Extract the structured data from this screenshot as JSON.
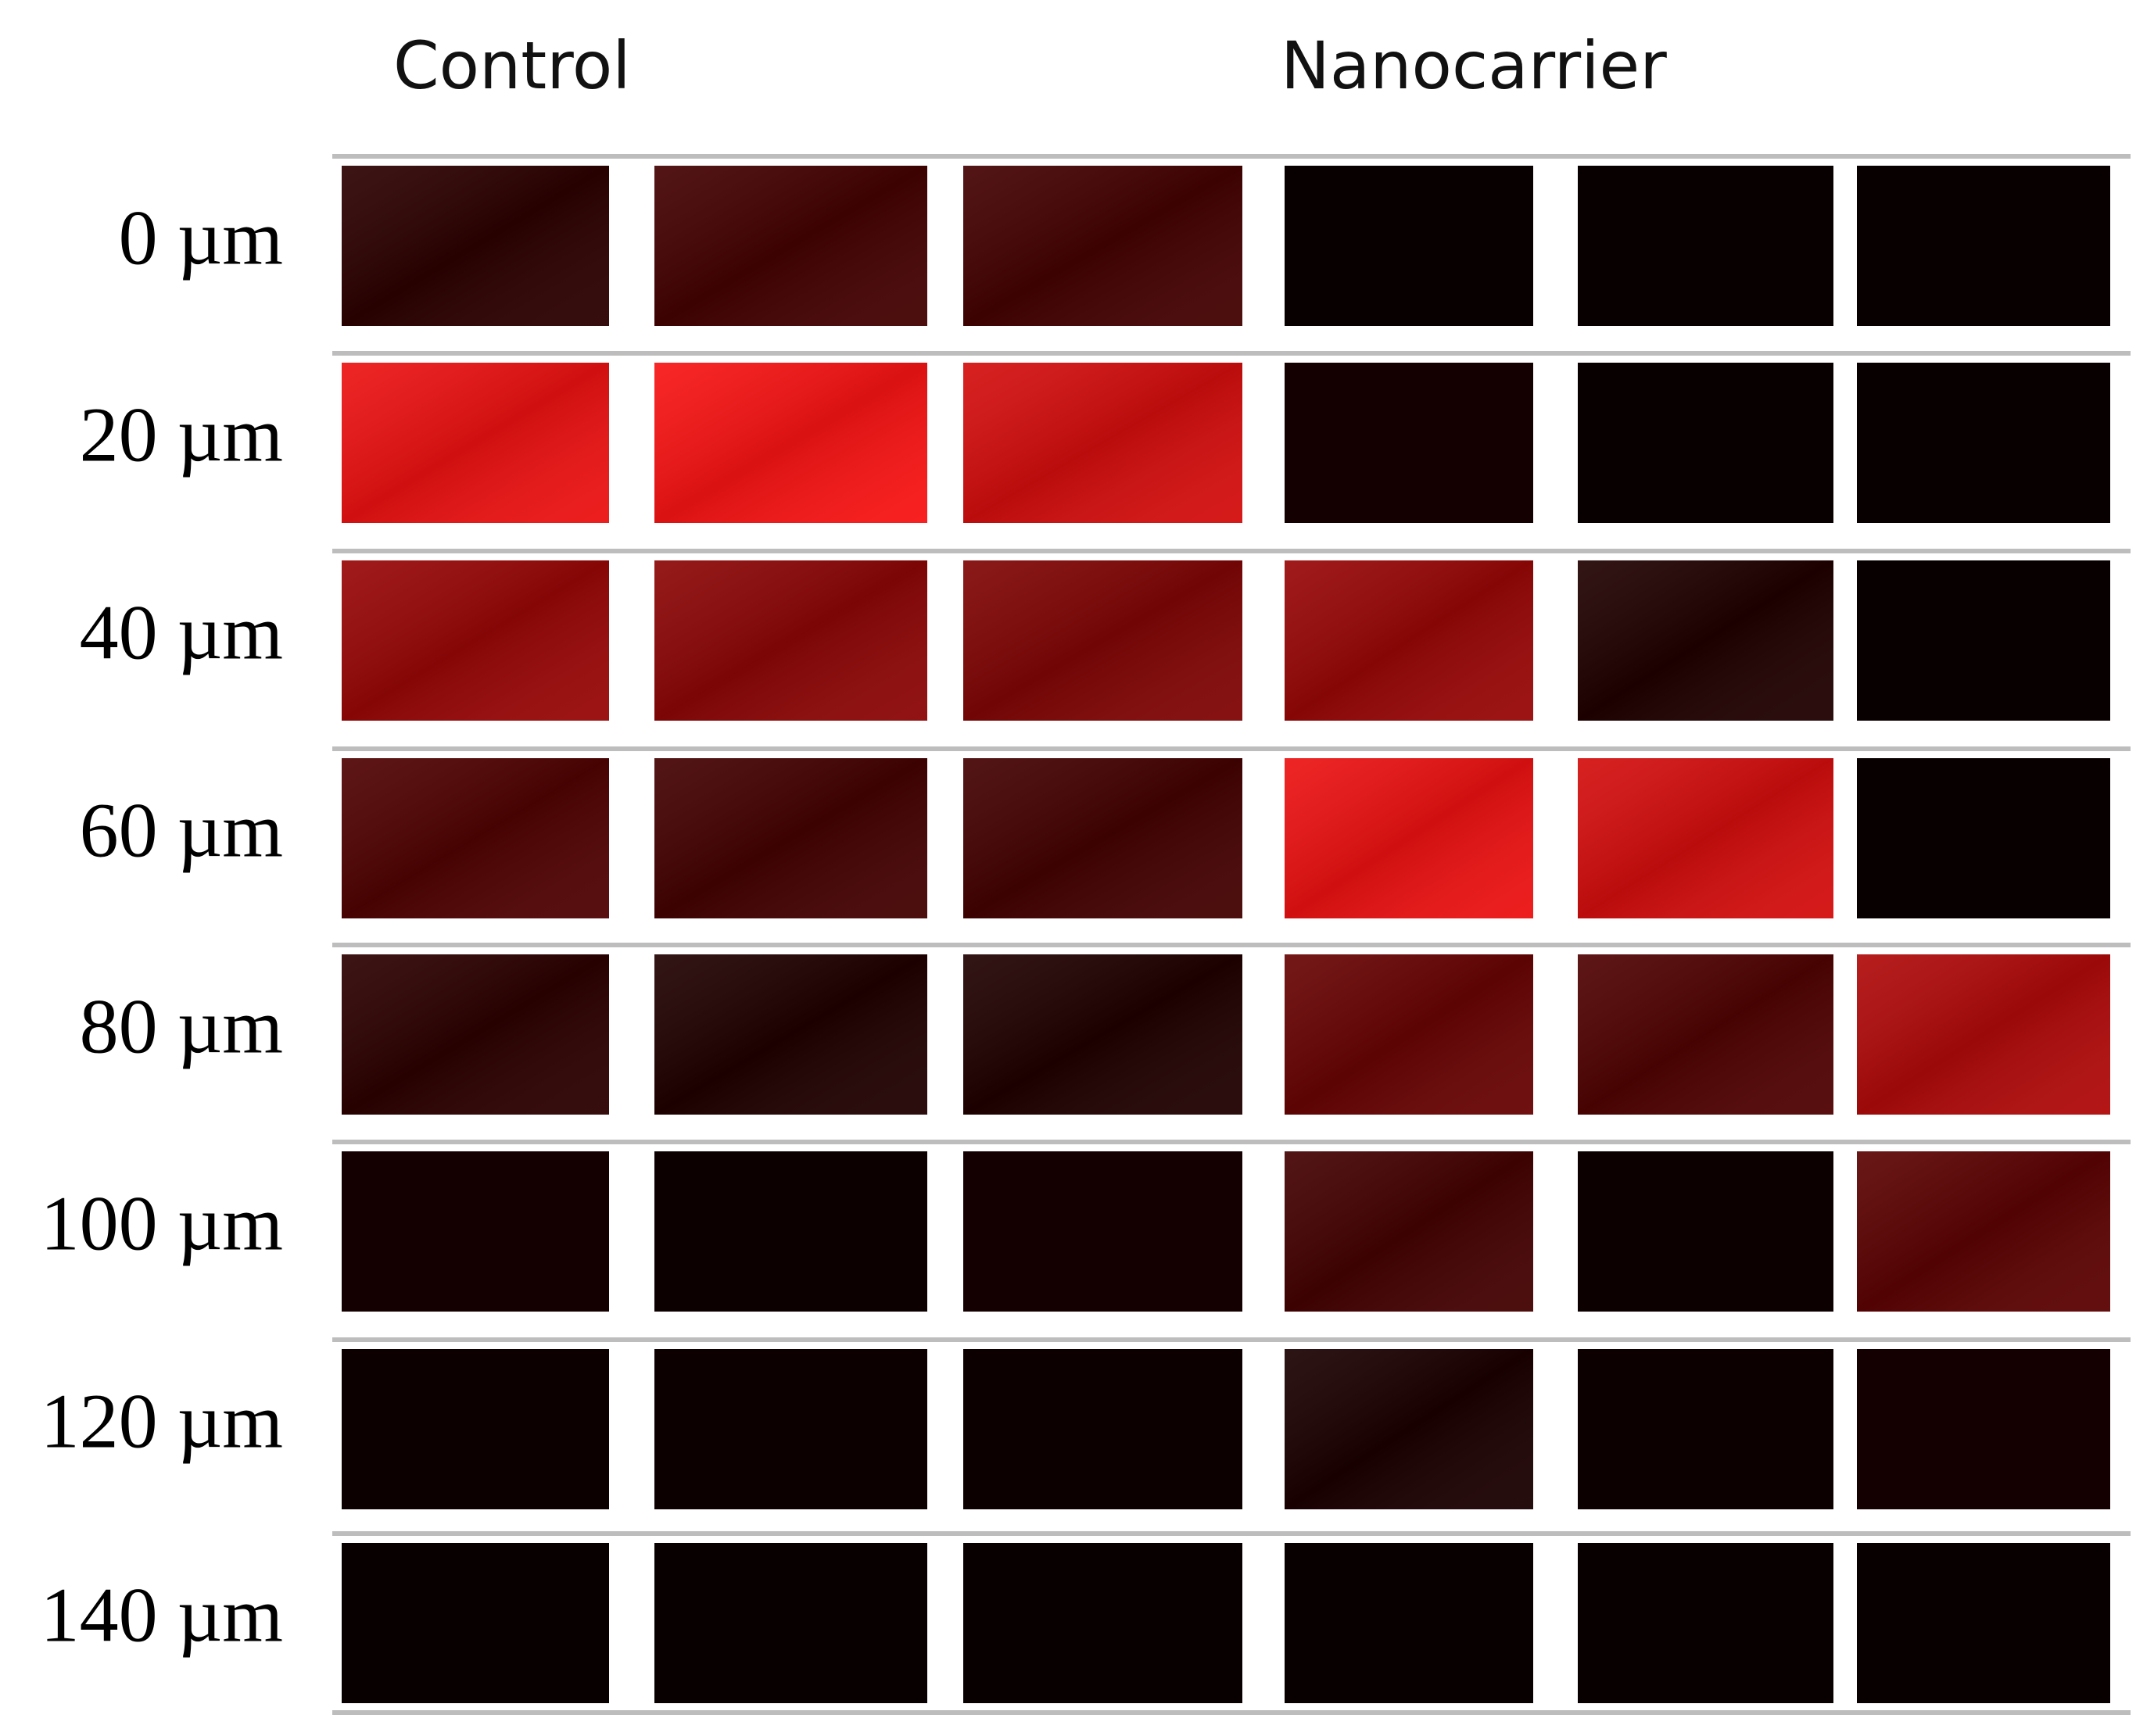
{
  "columns": {
    "control": "Control",
    "nanocarrier": "Nanocarrier"
  },
  "rows": [
    "0 µm",
    "20 µm",
    "40 µm",
    "60 µm",
    "80 µm",
    "100 µm",
    "120 µm",
    "140 µm"
  ]
}
